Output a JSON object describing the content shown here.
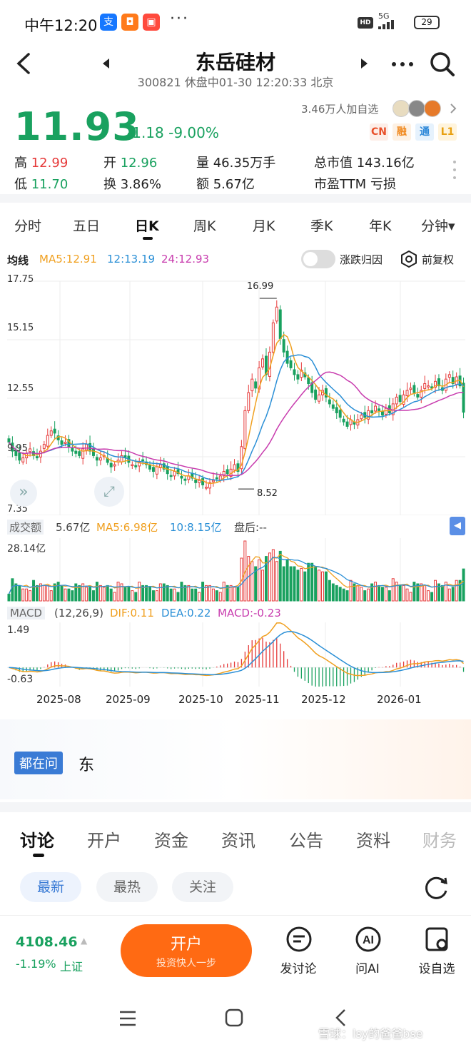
{
  "status_bar": {
    "time": "中午12:20",
    "network": "5G",
    "hd": "HD",
    "battery": "29",
    "more": "···"
  },
  "header": {
    "title": "东岳硅材",
    "subtitle": "300821 休盘中01-30 12:20:33 北京",
    "back_icon": "back-arrow-icon",
    "prev_icon": "triangle-left-icon",
    "next_icon": "triangle-right-icon",
    "more_icon": "more-dots-icon",
    "search_icon": "search-icon"
  },
  "quote": {
    "price": "11.93",
    "change": "-1.18",
    "change_pct": "-9.00%",
    "watchers": "3.46万人加自选",
    "badges": [
      "CN",
      "融",
      "通",
      "L1"
    ],
    "stats": [
      {
        "label": "高",
        "value": "12.99"
      },
      {
        "label": "开",
        "value": "12.96"
      },
      {
        "label": "量",
        "value": "46.35万手"
      },
      {
        "label": "总市值",
        "value": "143.16亿"
      },
      {
        "label": "低",
        "value": "11.70"
      },
      {
        "label": "换",
        "value": "3.86%"
      },
      {
        "label": "额",
        "value": "5.67亿"
      },
      {
        "label": "市盈TTM",
        "value": "亏损"
      }
    ]
  },
  "period_tabs": [
    "分时",
    "五日",
    "日K",
    "周K",
    "月K",
    "季K",
    "年K",
    "分钟▾"
  ],
  "active_period": "日K",
  "ma_bar": {
    "label": "均线",
    "ma5": "MA5:12.91",
    "ma12": "12:13.19",
    "ma24": "24:12.93",
    "toggle_label": "涨跌归因",
    "adjust_label": "前复权"
  },
  "chart_data": [
    {
      "type": "candlestick",
      "name": "日K",
      "y_ticks": [
        "17.75",
        "15.15",
        "12.55",
        "9.95",
        "7.35"
      ],
      "ylim": [
        7.35,
        17.75
      ],
      "x_ticks": [
        "2025-08",
        "2025-09",
        "2025-10",
        "2025-11",
        "2025-12",
        "2026-01"
      ],
      "annotations": [
        {
          "label": "16.99",
          "value": 16.99
        },
        {
          "label": "8.52",
          "value": 8.52
        }
      ],
      "closes": [
        10.6,
        10.2,
        10.0,
        9.8,
        9.9,
        10.1,
        10.3,
        10.0,
        9.9,
        10.2,
        10.5,
        10.9,
        11.1,
        11.0,
        10.7,
        10.5,
        10.6,
        10.4,
        10.2,
        10.1,
        10.0,
        10.3,
        10.5,
        10.2,
        10.0,
        9.8,
        9.9,
        10.0,
        9.7,
        9.5,
        9.6,
        9.8,
        10.0,
        9.9,
        9.7,
        9.6,
        9.5,
        9.7,
        9.8,
        9.6,
        9.4,
        9.3,
        9.5,
        9.6,
        9.4,
        9.2,
        9.1,
        9.3,
        9.2,
        9.0,
        8.9,
        9.1,
        9.0,
        8.8,
        8.9,
        8.7,
        8.6,
        8.8,
        8.9,
        9.0,
        9.1,
        9.3,
        9.2,
        9.4,
        9.6,
        9.3,
        10.4,
        12.0,
        12.8,
        13.4,
        13.0,
        13.9,
        14.3,
        13.6,
        14.6,
        15.9,
        16.6,
        15.2,
        14.6,
        14.1,
        13.9,
        13.6,
        13.4,
        13.8,
        13.5,
        13.2,
        12.8,
        12.5,
        12.7,
        12.9,
        12.6,
        12.3,
        12.1,
        11.9,
        11.7,
        11.5,
        11.3,
        11.6,
        11.4,
        11.6,
        11.8,
        11.7,
        12.0,
        11.9,
        12.2,
        12.0,
        11.8,
        12.1,
        11.9,
        12.3,
        12.6,
        12.4,
        12.7,
        12.9,
        13.0,
        12.8,
        12.6,
        12.9,
        13.2,
        13.1,
        13.0,
        13.3,
        13.1,
        12.9,
        13.4,
        13.6,
        13.2,
        13.5,
        13.1,
        11.93
      ],
      "ma5": "12.91",
      "ma12": "13.19",
      "ma24": "12.93"
    },
    {
      "type": "bar",
      "name": "成交额",
      "label": "成交额",
      "value": "5.67亿",
      "ma5": "MA5:6.98亿",
      "ma10": "10:8.15亿",
      "after_hours": "盘后:--",
      "max_label": "28.14亿",
      "ymax": 28.14
    },
    {
      "type": "bar",
      "name": "MACD",
      "params": "(12,26,9)",
      "dif": "DIF:0.11",
      "dea": "DEA:0.22",
      "macd": "MACD:-0.23",
      "y_ticks": [
        "1.49",
        "-0.63"
      ],
      "ylim": [
        -0.63,
        1.49
      ]
    }
  ],
  "ask": {
    "tag": "都在问",
    "text": "东"
  },
  "content_tabs": [
    "讨论",
    "开户",
    "资金",
    "资讯",
    "公告",
    "资料",
    "财务"
  ],
  "active_content_tab": "讨论",
  "filter_pills": [
    "最新",
    "最热",
    "关注"
  ],
  "active_pill": "最新",
  "bottom": {
    "index_value": "4108.46",
    "index_change": "-1.19%",
    "index_name": "上证",
    "open_btn": "开户",
    "open_sub": "投资快人一步",
    "actions": [
      {
        "label": "发讨论",
        "icon": "post-icon"
      },
      {
        "label": "问AI",
        "icon": "ai-icon"
      },
      {
        "label": "设自选",
        "icon": "add-watch-icon"
      }
    ]
  },
  "watermark": "雪球：lsy的爸爸bse",
  "colors": {
    "up": "#e63a3a",
    "down": "#19a15f",
    "accent": "#ff6a13",
    "ma5": "#f0a020",
    "ma12": "#2a8fd6",
    "ma24": "#c83cae"
  }
}
